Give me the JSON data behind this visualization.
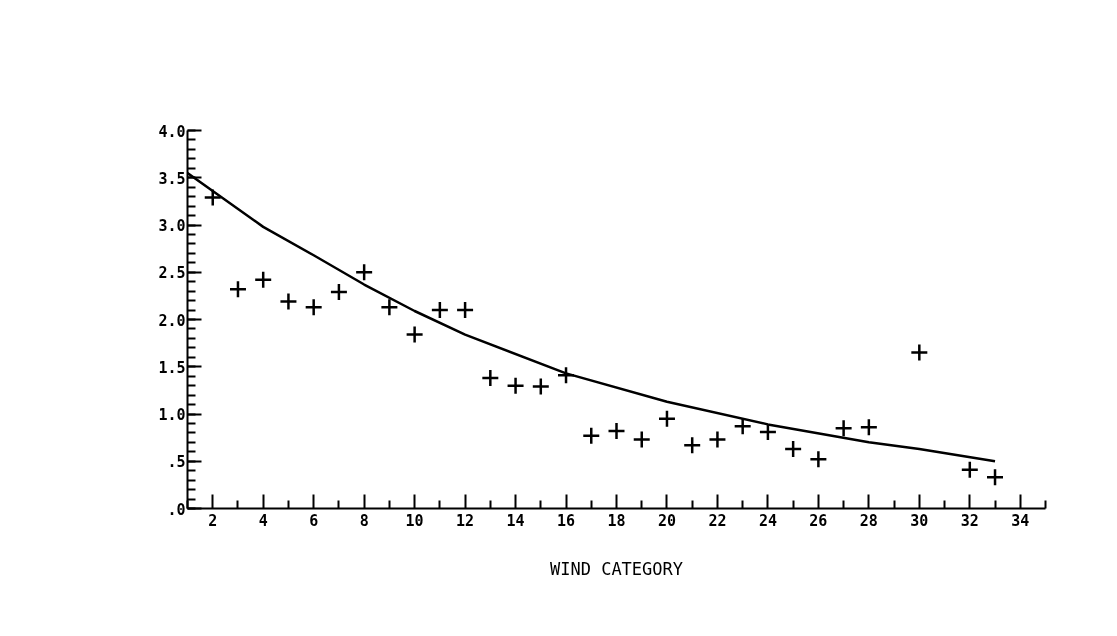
{
  "chart_data": {
    "type": "scatter",
    "xlabel": "WIND CATEGORY",
    "xlim": [
      1,
      35
    ],
    "ylim": [
      0,
      4.0
    ],
    "xticks": [
      2,
      4,
      6,
      8,
      10,
      12,
      14,
      16,
      18,
      20,
      22,
      24,
      26,
      28,
      30,
      32,
      34
    ],
    "yticks": [
      {
        "value": 0,
        "label": ".0"
      },
      {
        "value": 0.5,
        "label": ".5"
      },
      {
        "value": 1.0,
        "label": "1.0"
      },
      {
        "value": 1.5,
        "label": "1.5"
      },
      {
        "value": 2.0,
        "label": "2.0"
      },
      {
        "value": 2.5,
        "label": "2.5"
      },
      {
        "value": 3.0,
        "label": "3.0"
      },
      {
        "value": 3.5,
        "label": "3.5"
      },
      {
        "value": 4.0,
        "label": "4.0"
      }
    ],
    "grid": false,
    "marker": "cross",
    "series": [
      {
        "color": "#000000",
        "x": [
          2,
          3,
          4,
          5,
          6,
          7,
          8,
          9,
          10,
          11,
          12,
          13,
          14,
          15,
          16,
          17,
          18,
          19,
          20,
          21,
          22,
          23,
          24,
          25,
          26,
          27,
          28,
          30,
          32,
          33
        ],
        "values": [
          3.29,
          2.32,
          2.42,
          2.19,
          2.13,
          2.29,
          2.5,
          2.13,
          1.84,
          2.1,
          2.1,
          1.38,
          1.3,
          1.29,
          1.41,
          0.77,
          0.82,
          0.73,
          0.95,
          0.67,
          0.73,
          0.87,
          0.81,
          0.63,
          0.52,
          0.85,
          0.86,
          1.65,
          0.41,
          0.33
        ]
      },
      {
        "type": "line",
        "color": "#000000",
        "marker": "none",
        "line_style": "solid",
        "x": [
          1,
          2,
          4,
          6,
          8,
          10,
          12,
          16,
          20,
          24,
          28,
          30,
          33
        ],
        "values": [
          3.55,
          3.36,
          2.98,
          2.68,
          2.37,
          2.09,
          1.84,
          1.43,
          1.13,
          0.89,
          0.7,
          0.63,
          0.5
        ]
      }
    ]
  }
}
